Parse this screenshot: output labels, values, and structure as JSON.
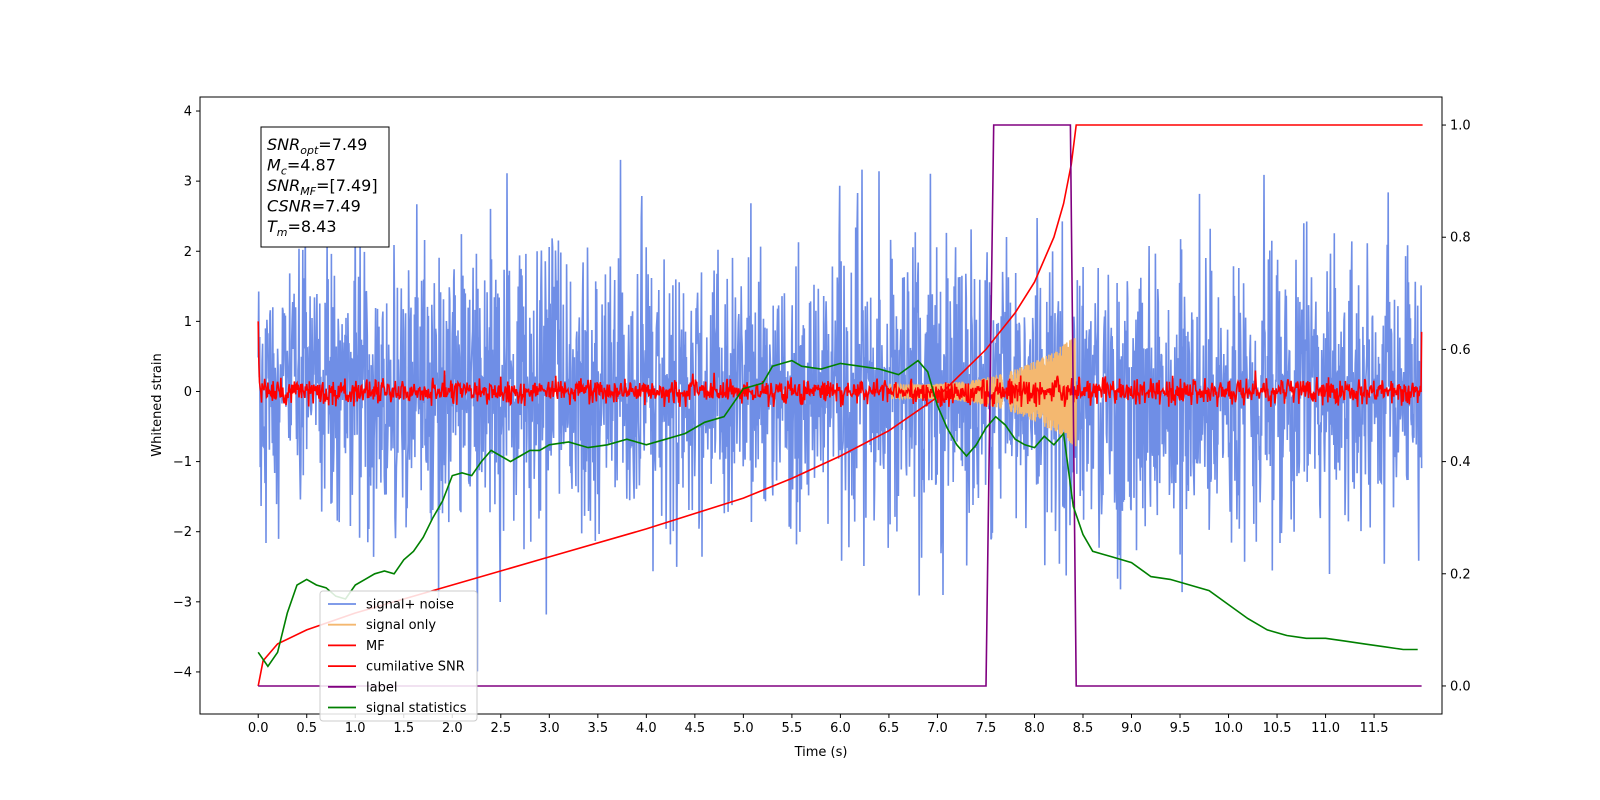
{
  "chart_data": {
    "type": "line",
    "title": "",
    "xlabel": "Time (s)",
    "ylabel": "Whitened strain",
    "y2label": "",
    "xlim": [
      -0.6,
      12.2
    ],
    "ylim": [
      -4.6,
      4.2
    ],
    "y2lim": [
      -0.05,
      1.05
    ],
    "xticks": [
      "0.0",
      "0.5",
      "1.0",
      "1.5",
      "2.0",
      "2.5",
      "3.0",
      "3.5",
      "4.0",
      "4.5",
      "5.0",
      "5.5",
      "6.0",
      "6.5",
      "7.0",
      "7.5",
      "8.0",
      "8.5",
      "9.0",
      "9.5",
      "10.0",
      "10.5",
      "11.0",
      "11.5"
    ],
    "yticks": [
      "4",
      "3",
      "2",
      "1",
      "0",
      "−1",
      "−2",
      "−3",
      "−4"
    ],
    "y2ticks": [
      "1.0",
      "0.8",
      "0.6",
      "0.4",
      "0.2",
      "0.0"
    ],
    "grid": false,
    "legend_position": "bottom-left",
    "annotation": {
      "lines": [
        {
          "sym": "SNR",
          "sub": "opt",
          "value": "=7.49"
        },
        {
          "sym": "M",
          "sub": "c",
          "value": "=4.87"
        },
        {
          "sym": "SNR",
          "sub": "MF",
          "value": "=[7.49]"
        },
        {
          "sym": "CSNR",
          "sub": "",
          "value": "=7.49"
        },
        {
          "sym": "T",
          "sub": "m",
          "value": "=8.43"
        }
      ]
    },
    "series": [
      {
        "name": "signal+ noise",
        "axis": "left",
        "color": "#6f8ee6",
        "noise_sigma": 1.0,
        "x_range": [
          0.0,
          11.99
        ]
      },
      {
        "name": "signal only",
        "axis": "left",
        "color": "#f4b870",
        "chirp_start": 6.5,
        "chirp_end": 8.43,
        "peak_amplitude": 0.7
      },
      {
        "name": "MF",
        "axis": "left",
        "color": "#ff0000",
        "noise_sigma": 0.09,
        "start_value": 1.0,
        "end_value": 0.85
      },
      {
        "name": "cumilative SNR",
        "axis": "right",
        "color": "#ff0000",
        "x": [
          0.0,
          0.05,
          0.2,
          0.5,
          1.0,
          2.0,
          3.0,
          4.0,
          5.0,
          5.5,
          6.0,
          6.5,
          7.0,
          7.5,
          7.8,
          8.0,
          8.2,
          8.3,
          8.38,
          8.43,
          8.5,
          9.0,
          10.0,
          11.0,
          12.0
        ],
        "y": [
          0.0,
          0.045,
          0.075,
          0.1,
          0.13,
          0.18,
          0.23,
          0.28,
          0.335,
          0.37,
          0.41,
          0.455,
          0.515,
          0.6,
          0.665,
          0.72,
          0.8,
          0.86,
          0.93,
          1.0,
          1.0,
          1.0,
          1.0,
          1.0,
          1.0
        ]
      },
      {
        "name": "label",
        "axis": "right",
        "color": "#800080",
        "x": [
          0.0,
          7.5,
          7.58,
          8.37,
          8.43,
          11.99
        ],
        "y": [
          0.0,
          0.0,
          1.0,
          1.0,
          0.0,
          0.0
        ]
      },
      {
        "name": "signal statistics",
        "axis": "right",
        "color": "#008000",
        "x": [
          0.0,
          0.1,
          0.2,
          0.3,
          0.4,
          0.5,
          0.6,
          0.7,
          0.8,
          0.9,
          1.0,
          1.1,
          1.2,
          1.3,
          1.4,
          1.5,
          1.6,
          1.7,
          1.8,
          1.9,
          2.0,
          2.1,
          2.2,
          2.3,
          2.4,
          2.5,
          2.6,
          2.7,
          2.8,
          2.9,
          3.0,
          3.2,
          3.4,
          3.6,
          3.8,
          4.0,
          4.2,
          4.4,
          4.6,
          4.8,
          5.0,
          5.2,
          5.3,
          5.4,
          5.5,
          5.6,
          5.8,
          6.0,
          6.2,
          6.4,
          6.6,
          6.8,
          6.9,
          7.0,
          7.1,
          7.2,
          7.3,
          7.4,
          7.5,
          7.6,
          7.7,
          7.8,
          7.9,
          8.0,
          8.1,
          8.2,
          8.3,
          8.4,
          8.5,
          8.6,
          8.7,
          8.8,
          9.0,
          9.2,
          9.4,
          9.6,
          9.8,
          10.0,
          10.2,
          10.4,
          10.6,
          10.8,
          11.0,
          11.2,
          11.4,
          11.6,
          11.8,
          11.95
        ],
        "y": [
          0.06,
          0.035,
          0.06,
          0.13,
          0.18,
          0.19,
          0.18,
          0.175,
          0.16,
          0.155,
          0.18,
          0.19,
          0.2,
          0.205,
          0.2,
          0.225,
          0.24,
          0.265,
          0.3,
          0.33,
          0.375,
          0.38,
          0.375,
          0.4,
          0.42,
          0.41,
          0.4,
          0.41,
          0.42,
          0.42,
          0.43,
          0.435,
          0.425,
          0.43,
          0.44,
          0.43,
          0.44,
          0.45,
          0.47,
          0.48,
          0.53,
          0.54,
          0.57,
          0.575,
          0.58,
          0.57,
          0.565,
          0.575,
          0.57,
          0.565,
          0.555,
          0.58,
          0.56,
          0.5,
          0.46,
          0.43,
          0.41,
          0.43,
          0.46,
          0.48,
          0.465,
          0.44,
          0.43,
          0.425,
          0.445,
          0.43,
          0.45,
          0.32,
          0.27,
          0.24,
          0.235,
          0.23,
          0.22,
          0.195,
          0.19,
          0.18,
          0.17,
          0.145,
          0.12,
          0.1,
          0.09,
          0.085,
          0.085,
          0.08,
          0.075,
          0.07,
          0.065,
          0.065
        ]
      }
    ]
  }
}
